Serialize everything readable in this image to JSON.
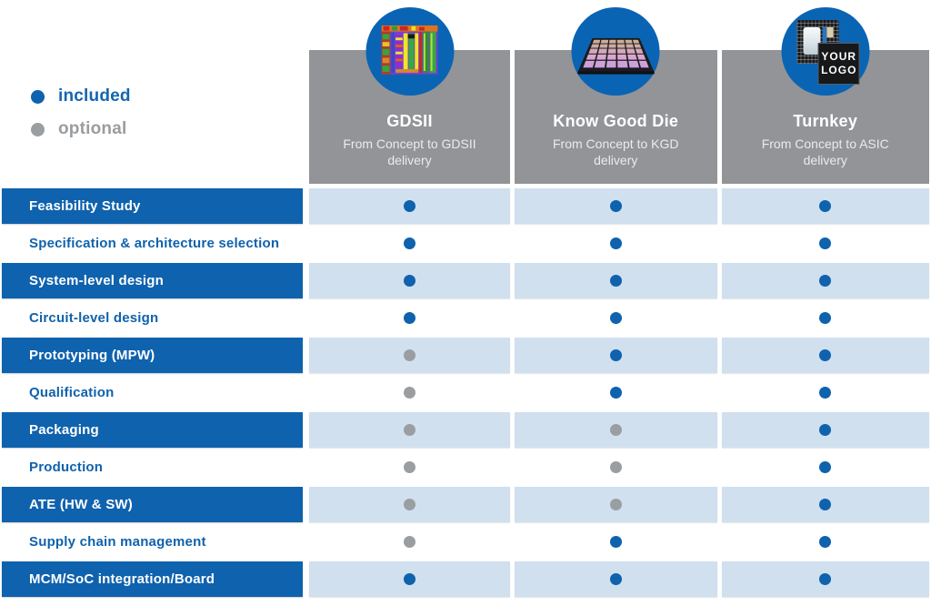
{
  "legend": {
    "included_label": "included",
    "optional_label": "optional"
  },
  "colors": {
    "brand_blue": "#0f62ad",
    "light_blue_cell": "#d0e0ef",
    "header_gray": "#929497",
    "optional_gray": "#9b9ea1",
    "circle_blue": "#0a64b4"
  },
  "columns": [
    {
      "id": "gdsii",
      "title": "GDSII",
      "subtitle": "From Concept to GDSII delivery",
      "icon": "chip-die-photo-icon"
    },
    {
      "id": "kgd",
      "title": "Know Good Die",
      "subtitle": "From Concept to KGD delivery",
      "icon": "die-tray-icon"
    },
    {
      "id": "turnkey",
      "title": "Turnkey",
      "subtitle": "From Concept to ASIC delivery",
      "icon": "your-logo-chip-icon",
      "logo_line1": "YOUR",
      "logo_line2": "LOGO"
    }
  ],
  "rows": [
    {
      "label": "Feasibility Study",
      "cells": [
        "included",
        "included",
        "included"
      ]
    },
    {
      "label": "Specification & architecture selection",
      "cells": [
        "included",
        "included",
        "included"
      ]
    },
    {
      "label": "System-level design",
      "cells": [
        "included",
        "included",
        "included"
      ]
    },
    {
      "label": "Circuit-level design",
      "cells": [
        "included",
        "included",
        "included"
      ]
    },
    {
      "label": "Prototyping (MPW)",
      "cells": [
        "optional",
        "included",
        "included"
      ]
    },
    {
      "label": "Qualification",
      "cells": [
        "optional",
        "included",
        "included"
      ]
    },
    {
      "label": "Packaging",
      "cells": [
        "optional",
        "optional",
        "included"
      ]
    },
    {
      "label": "Production",
      "cells": [
        "optional",
        "optional",
        "included"
      ]
    },
    {
      "label": "ATE (HW & SW)",
      "cells": [
        "optional",
        "optional",
        "included"
      ]
    },
    {
      "label": "Supply chain management",
      "cells": [
        "optional",
        "included",
        "included"
      ]
    },
    {
      "label": "MCM/SoC integration/Board",
      "cells": [
        "included",
        "included",
        "included"
      ]
    }
  ],
  "chart_data": {
    "type": "table",
    "title": "ASIC service models comparison",
    "legend": {
      "included": "blue dot",
      "optional": "gray dot"
    },
    "columns": [
      "GDSII",
      "Know Good Die",
      "Turnkey"
    ],
    "column_subtitles": [
      "From Concept to GDSII delivery",
      "From Concept to KGD delivery",
      "From Concept to ASIC delivery"
    ],
    "row_labels": [
      "Feasibility Study",
      "Specification & architecture selection",
      "System-level design",
      "Circuit-level design",
      "Prototyping (MPW)",
      "Qualification",
      "Packaging",
      "Production",
      "ATE (HW & SW)",
      "Supply chain management",
      "MCM/SoC integration/Board"
    ],
    "values": [
      [
        "included",
        "included",
        "included"
      ],
      [
        "included",
        "included",
        "included"
      ],
      [
        "included",
        "included",
        "included"
      ],
      [
        "included",
        "included",
        "included"
      ],
      [
        "optional",
        "included",
        "included"
      ],
      [
        "optional",
        "included",
        "included"
      ],
      [
        "optional",
        "optional",
        "included"
      ],
      [
        "optional",
        "optional",
        "included"
      ],
      [
        "optional",
        "optional",
        "included"
      ],
      [
        "optional",
        "included",
        "included"
      ],
      [
        "included",
        "included",
        "included"
      ]
    ]
  }
}
